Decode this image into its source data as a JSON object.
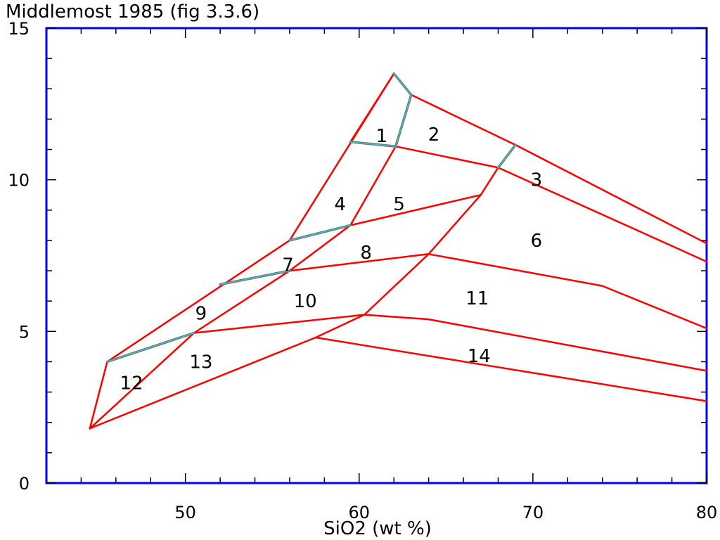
{
  "chart_data": {
    "type": "diagram",
    "title": "Middlemost 1985 (fig 3.3.6)",
    "xlabel": "SiO2  (wt %)",
    "ylabel": "",
    "xlim": [
      42,
      80
    ],
    "ylim": [
      0,
      15
    ],
    "xticks": [
      50,
      60,
      70,
      80
    ],
    "yticks": [
      0,
      5,
      10,
      15
    ],
    "grid": false,
    "colors": {
      "frame": "#0000ff",
      "boundary": "#ff0000",
      "alt_boundary": "#40c0c0"
    },
    "red_boundaries": [
      [
        [
          44.5,
          1.8
        ],
        [
          45.5,
          4.0
        ],
        [
          56.0,
          8.0
        ],
        [
          62.0,
          13.5
        ]
      ],
      [
        [
          63.0,
          12.8
        ],
        [
          69.0,
          11.15
        ],
        [
          80.0,
          7.9
        ]
      ],
      [
        [
          59.5,
          11.25
        ],
        [
          62.0,
          13.5
        ]
      ],
      [
        [
          62.1,
          11.1
        ],
        [
          68.0,
          10.4
        ],
        [
          80.0,
          7.3
        ]
      ],
      [
        [
          44.5,
          1.8
        ],
        [
          50.5,
          4.95
        ],
        [
          56.0,
          7.0
        ],
        [
          59.5,
          8.5
        ],
        [
          62.1,
          11.1
        ]
      ],
      [
        [
          59.5,
          8.5
        ],
        [
          67.0,
          9.5
        ]
      ],
      [
        [
          68.0,
          10.4
        ],
        [
          67.0,
          9.5
        ],
        [
          64.0,
          7.55
        ],
        [
          60.3,
          5.55
        ],
        [
          57.5,
          4.8
        ],
        [
          44.5,
          1.8
        ]
      ],
      [
        [
          56.0,
          7.0
        ],
        [
          64.0,
          7.55
        ],
        [
          74.0,
          6.5
        ],
        [
          80.0,
          5.1
        ]
      ],
      [
        [
          50.5,
          4.95
        ],
        [
          60.3,
          5.55
        ],
        [
          64.0,
          5.4
        ],
        [
          80.0,
          3.7
        ]
      ],
      [
        [
          57.5,
          4.8
        ],
        [
          80.0,
          2.7
        ]
      ]
    ],
    "alt_boundaries": [
      [
        [
          62.0,
          13.5
        ],
        [
          63.0,
          12.8
        ],
        [
          62.1,
          11.1
        ]
      ],
      [
        [
          59.5,
          11.25
        ],
        [
          62.1,
          11.1
        ]
      ],
      [
        [
          68.0,
          10.4
        ],
        [
          69.0,
          11.15
        ]
      ],
      [
        [
          56.0,
          8.0
        ],
        [
          59.5,
          8.5
        ]
      ],
      [
        [
          52.0,
          6.55
        ],
        [
          56.0,
          7.0
        ]
      ],
      [
        [
          45.5,
          4.0
        ],
        [
          50.5,
          4.95
        ]
      ]
    ],
    "fields": [
      {
        "label": "1",
        "x": 61.3,
        "y": 11.45
      },
      {
        "label": "2",
        "x": 64.3,
        "y": 11.5
      },
      {
        "label": "3",
        "x": 70.2,
        "y": 10.0
      },
      {
        "label": "4",
        "x": 58.9,
        "y": 9.2
      },
      {
        "label": "5",
        "x": 62.3,
        "y": 9.2
      },
      {
        "label": "6",
        "x": 70.2,
        "y": 8.0
      },
      {
        "label": "7",
        "x": 55.9,
        "y": 7.2
      },
      {
        "label": "8",
        "x": 60.4,
        "y": 7.6
      },
      {
        "label": "9",
        "x": 50.9,
        "y": 5.6
      },
      {
        "label": "10",
        "x": 56.9,
        "y": 6.0
      },
      {
        "label": "11",
        "x": 66.8,
        "y": 6.1
      },
      {
        "label": "12",
        "x": 46.9,
        "y": 3.3
      },
      {
        "label": "13",
        "x": 50.9,
        "y": 4.0
      },
      {
        "label": "14",
        "x": 66.9,
        "y": 4.2
      }
    ]
  }
}
